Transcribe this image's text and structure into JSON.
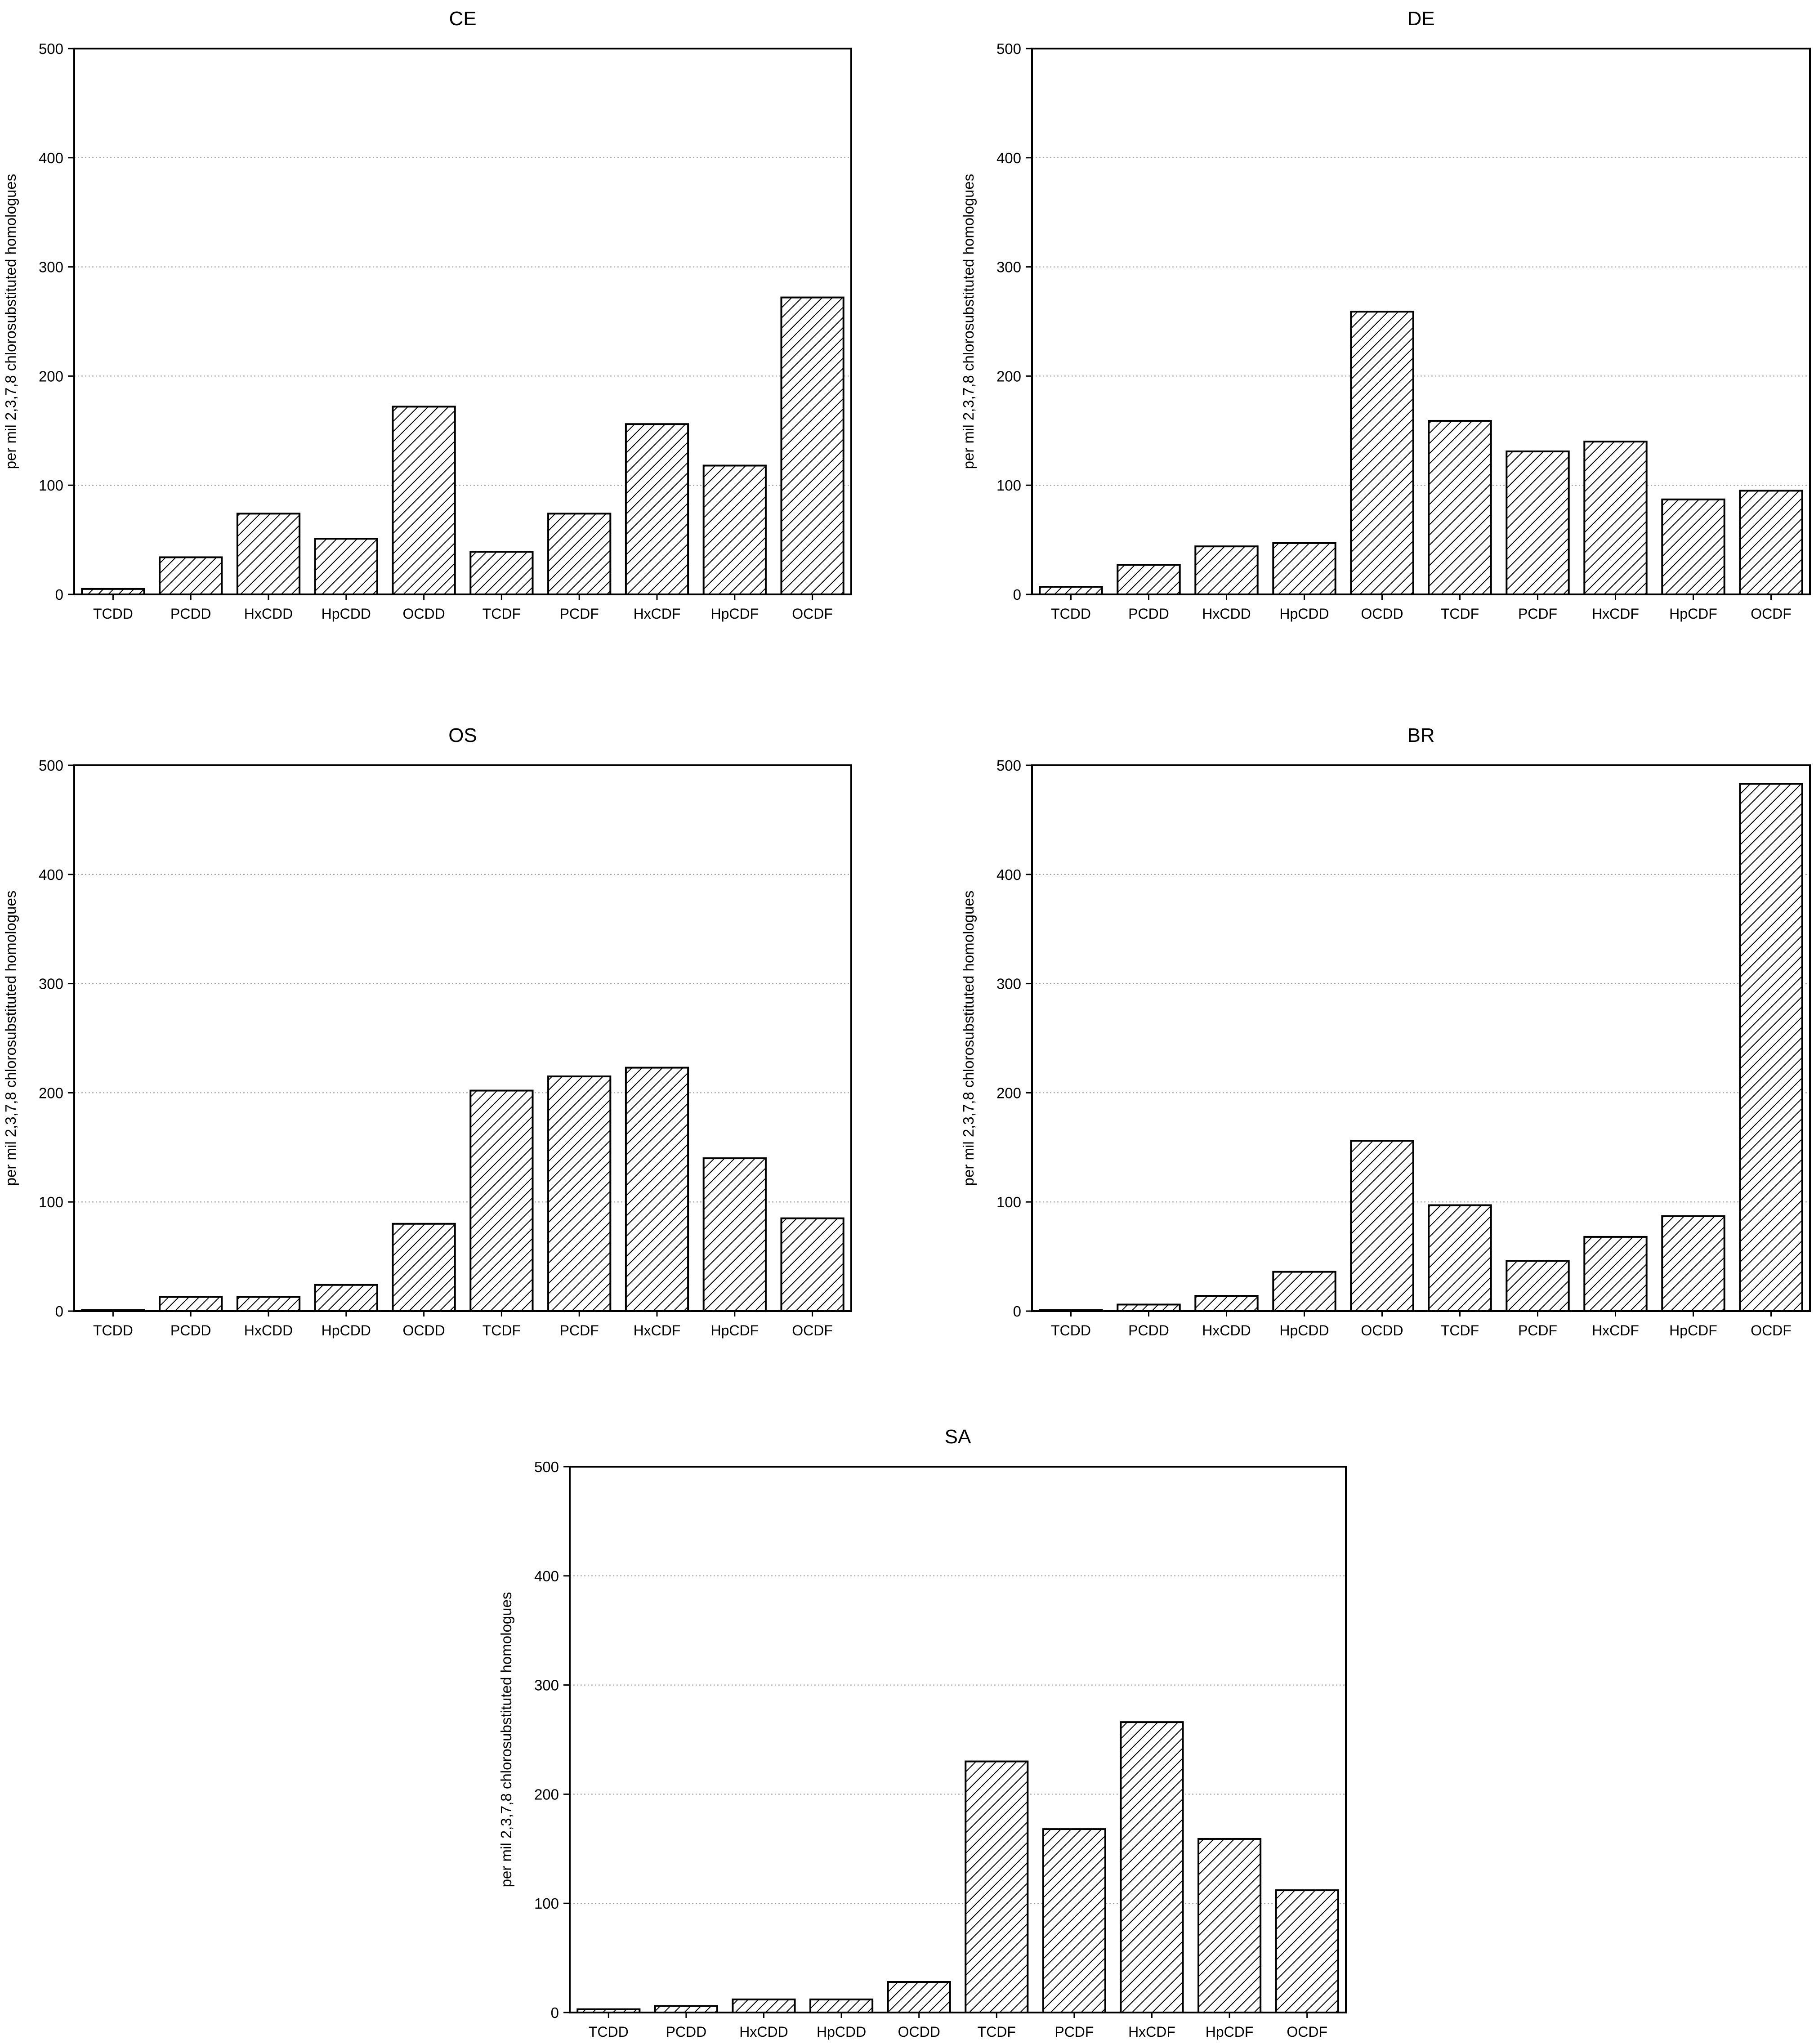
{
  "chart_data": [
    {
      "type": "bar",
      "title": "CE",
      "ylabel": "per mil 2,3,7,8 chlorosubstituted homologues",
      "categories": [
        "TCDD",
        "PCDD",
        "HxCDD",
        "HpCDD",
        "OCDD",
        "TCDF",
        "PCDF",
        "HxCDF",
        "HpCDF",
        "OCDF"
      ],
      "values": [
        5,
        34,
        74,
        51,
        172,
        39,
        74,
        156,
        118,
        272
      ],
      "ylim": [
        0,
        500
      ],
      "yticks": [
        "0",
        "100",
        "200",
        "300",
        "400",
        "500"
      ],
      "grid": true,
      "bar_fill": "hatched"
    },
    {
      "type": "bar",
      "title": "DE",
      "ylabel": "per mil 2,3,7,8 chlorosubstituted homologues",
      "categories": [
        "TCDD",
        "PCDD",
        "HxCDD",
        "HpCDD",
        "OCDD",
        "TCDF",
        "PCDF",
        "HxCDF",
        "HpCDF",
        "OCDF"
      ],
      "values": [
        7,
        27,
        44,
        47,
        259,
        159,
        131,
        140,
        87,
        95
      ],
      "ylim": [
        0,
        500
      ],
      "yticks": [
        "0",
        "100",
        "200",
        "300",
        "400",
        "500"
      ],
      "grid": true,
      "bar_fill": "hatched"
    },
    {
      "type": "bar",
      "title": "OS",
      "ylabel": "per mil 2,3,7,8 chlorosubstituted homologues",
      "categories": [
        "TCDD",
        "PCDD",
        "HxCDD",
        "HpCDD",
        "OCDD",
        "TCDF",
        "PCDF",
        "HxCDF",
        "HpCDF",
        "OCDF"
      ],
      "values": [
        1,
        13,
        13,
        24,
        80,
        202,
        215,
        223,
        140,
        85
      ],
      "ylim": [
        0,
        500
      ],
      "yticks": [
        "0",
        "100",
        "200",
        "300",
        "400",
        "500"
      ],
      "grid": true,
      "bar_fill": "hatched"
    },
    {
      "type": "bar",
      "title": "BR",
      "ylabel": "per mil 2,3,7,8 chlorosubstituted homologues",
      "categories": [
        "TCDD",
        "PCDD",
        "HxCDD",
        "HpCDD",
        "OCDD",
        "TCDF",
        "PCDF",
        "HxCDF",
        "HpCDF",
        "OCDF"
      ],
      "values": [
        1,
        6,
        14,
        36,
        156,
        97,
        46,
        68,
        87,
        483
      ],
      "ylim": [
        0,
        500
      ],
      "yticks": [
        "0",
        "100",
        "200",
        "300",
        "400",
        "500"
      ],
      "grid": true,
      "bar_fill": "hatched"
    },
    {
      "type": "bar",
      "title": "SA",
      "ylabel": "per mil 2,3,7,8 chlorosubstituted homologues",
      "categories": [
        "TCDD",
        "PCDD",
        "HxCDD",
        "HpCDD",
        "OCDD",
        "TCDF",
        "PCDF",
        "HxCDF",
        "HpCDF",
        "OCDF"
      ],
      "values": [
        3,
        6,
        12,
        12,
        28,
        230,
        168,
        266,
        159,
        112
      ],
      "ylim": [
        0,
        500
      ],
      "yticks": [
        "0",
        "100",
        "200",
        "300",
        "400",
        "500"
      ],
      "grid": true,
      "bar_fill": "hatched"
    }
  ],
  "colors": {
    "bar_stroke": "#000000",
    "hatch": "#000000",
    "bar_background": "#ffffff",
    "grid": "#9a9a9a"
  }
}
